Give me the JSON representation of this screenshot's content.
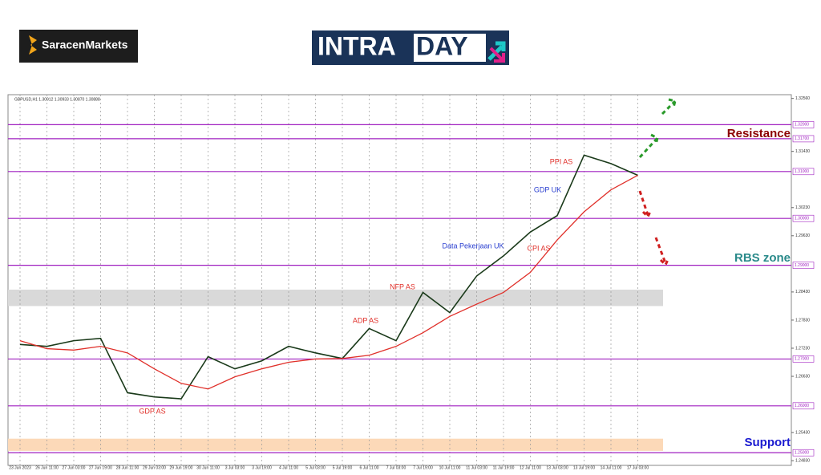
{
  "brand": "SaracenMarkets",
  "banner": {
    "left": "INTRA",
    "right": "DAY"
  },
  "chart_data": {
    "type": "line",
    "header": "GBPUSD,H1  1.30912 1.30933 1.30870 1.30888",
    "categories": [
      "23 Jun 2023",
      "26 Jun 11:00",
      "27 Jun 03:00",
      "27 Jun 19:00",
      "28 Jun 11:00",
      "29 Jun 03:00",
      "29 Jun 19:00",
      "30 Jun 11:00",
      "3 Jul 03:00",
      "3 Jul 19:00",
      "4 Jul 11:00",
      "5 Jul 03:00",
      "5 Jul 19:00",
      "6 Jul 11:00",
      "7 Jul 03:00",
      "7 Jul 19:00",
      "10 Jul 11:00",
      "11 Jul 03:00",
      "11 Jul 19:00",
      "12 Jul 11:00",
      "13 Jul 03:00",
      "13 Jul 19:00",
      "14 Jul 11:00",
      "17 Jul 03:00"
    ],
    "series": [
      {
        "color": "#1a3a1a",
        "values": [
          1.2731,
          1.2727,
          1.2739,
          1.2744,
          1.2628,
          1.2619,
          1.2615,
          1.2705,
          1.2679,
          1.2696,
          1.2727,
          1.2713,
          1.2701,
          1.2765,
          1.2739,
          1.2842,
          1.2799,
          1.2877,
          1.292,
          1.2971,
          1.3006,
          1.3135,
          1.3117,
          1.3092
        ]
      },
      {
        "color": "#e0302a",
        "values": [
          1.2739,
          1.2722,
          1.2719,
          1.2727,
          1.2713,
          1.2679,
          1.2648,
          1.2636,
          1.2662,
          1.2679,
          1.2693,
          1.27,
          1.2701,
          1.2708,
          1.2727,
          1.2756,
          1.2791,
          1.2817,
          1.2842,
          1.2885,
          1.2954,
          1.3014,
          1.3061,
          1.3092
        ]
      }
    ],
    "ylim": [
      1.2473,
      1.3264
    ],
    "yticks": [
      {
        "value": 1.2483,
        "label": "1.24830"
      },
      {
        "value": 1.2543,
        "label": "1.25430"
      },
      {
        "value": 1.2663,
        "label": "1.26630"
      },
      {
        "value": 1.2723,
        "label": "1.27230"
      },
      {
        "value": 1.2783,
        "label": "1.27830"
      },
      {
        "value": 1.2843,
        "label": "1.28430"
      },
      {
        "value": 1.2963,
        "label": "1.29630"
      },
      {
        "value": 1.3023,
        "label": "1.30230"
      },
      {
        "value": 1.3143,
        "label": "1.31430"
      },
      {
        "value": 1.3256,
        "label": "1.32560"
      }
    ],
    "levels": [
      {
        "value": 1.32,
        "label": "1.32000"
      },
      {
        "value": 1.317,
        "label": "1.31700"
      },
      {
        "value": 1.31,
        "label": "1.31000"
      },
      {
        "value": 1.3,
        "label": "1.30000"
      },
      {
        "value": 1.29,
        "label": "1.29000"
      },
      {
        "value": 1.27,
        "label": "1.27000"
      },
      {
        "value": 1.26,
        "label": "1.26000"
      },
      {
        "value": 1.25,
        "label": "1.25000"
      }
    ],
    "level_color": "#a020c0",
    "zones": [
      {
        "from": 1.2813,
        "to": 1.2848,
        "color": "#d9d9d9"
      },
      {
        "from": 1.2504,
        "to": 1.253,
        "color": "#fcd9b8"
      }
    ],
    "annotations": [
      {
        "text": "GDP AS",
        "color": "#e0302a"
      },
      {
        "text": "ADP AS",
        "color": "#e0302a"
      },
      {
        "text": "NFP AS",
        "color": "#e0302a"
      },
      {
        "text": "Data Pekerjaan UK",
        "color": "#2a3fd0"
      },
      {
        "text": "CPI AS",
        "color": "#e0302a"
      },
      {
        "text": "GDP UK",
        "color": "#2a3fd0"
      },
      {
        "text": "PPI AS",
        "color": "#e0302a"
      }
    ],
    "zone_labels": [
      {
        "text": "Resistance",
        "color": "#8b0000"
      },
      {
        "text": "RBS zone",
        "color": "#2a8a8a"
      },
      {
        "text": "Support",
        "color": "#1a1ad0"
      }
    ],
    "grid": true
  }
}
